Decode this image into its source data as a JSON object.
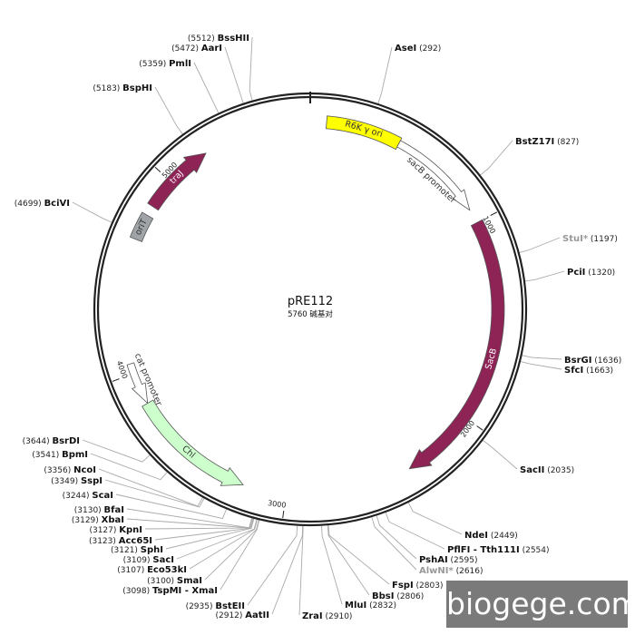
{
  "plasmid": {
    "name": "pRE112",
    "size_text": "5760 碱基对",
    "length_bp": 5760
  },
  "ticks": [
    "1000",
    "2000",
    "3000",
    "4000",
    "5000"
  ],
  "features": [
    {
      "label": "R6K γ ori",
      "start": 80,
      "end": 450,
      "color": "#ffff00",
      "kind": "box",
      "text_color": "#333"
    },
    {
      "label": "sacB promoter",
      "start": 450,
      "end": 930,
      "color": "#ffffff",
      "kind": "arrow_cw",
      "text_color": "#333"
    },
    {
      "label": "SacB",
      "start": 1000,
      "end": 2370,
      "color": "#8e2356",
      "kind": "arrow_cw",
      "text_color": "#fff"
    },
    {
      "label": "cat promoter",
      "start": 3840,
      "end": 4050,
      "color": "#ffffff",
      "kind": "arrow_ccw",
      "text_color": "#333"
    },
    {
      "label": "Chl",
      "start": 3215,
      "end": 3840,
      "color": "#ccffcc",
      "kind": "arrow_ccw",
      "text_color": "#333"
    },
    {
      "label": "oriT",
      "start": 4670,
      "end": 4800,
      "color": "#a0a4a8",
      "kind": "box",
      "text_color": "#333"
    },
    {
      "label": "traJ",
      "start": 4850,
      "end": 5220,
      "color": "#8e2356",
      "kind": "arrow_cw",
      "text_color": "#fff"
    }
  ],
  "enzymes": [
    {
      "name": "BssHII",
      "pos": "5512"
    },
    {
      "name": "AarI",
      "pos": "5472"
    },
    {
      "name": "PmlI",
      "pos": "5359"
    },
    {
      "name": "BspHI",
      "pos": "5183"
    },
    {
      "name": "BciVI",
      "pos": "4699"
    },
    {
      "name": "AseI",
      "pos": "292"
    },
    {
      "name": "BstZ17I",
      "pos": "827"
    },
    {
      "name": "StuI*",
      "pos": "1197",
      "dim": true
    },
    {
      "name": "PciI",
      "pos": "1320"
    },
    {
      "name": "BsrGI",
      "pos": "1636"
    },
    {
      "name": "SfcI",
      "pos": "1663"
    },
    {
      "name": "SacII",
      "pos": "2035"
    },
    {
      "name": "NdeI",
      "pos": "2449"
    },
    {
      "name": "PflFI - Tth111I",
      "pos": "2554"
    },
    {
      "name": "PshAI",
      "pos": "2595"
    },
    {
      "name": "AlwNI*",
      "pos": "2616",
      "dim": true
    },
    {
      "name": "FspI",
      "pos": "2803"
    },
    {
      "name": "BbsI",
      "pos": "2806"
    },
    {
      "name": "MluI",
      "pos": "2832"
    },
    {
      "name": "ZraI",
      "pos": "2910"
    },
    {
      "name": "BsrDI",
      "pos": "3644"
    },
    {
      "name": "BpmI",
      "pos": "3541"
    },
    {
      "name": "NcoI",
      "pos": "3356"
    },
    {
      "name": "SspI",
      "pos": "3349"
    },
    {
      "name": "ScaI",
      "pos": "3244"
    },
    {
      "name": "BfaI",
      "pos": "3130"
    },
    {
      "name": "XbaI",
      "pos": "3129"
    },
    {
      "name": "KpnI",
      "pos": "3127"
    },
    {
      "name": "Acc65I",
      "pos": "3123"
    },
    {
      "name": "SphI",
      "pos": "3121"
    },
    {
      "name": "SacI",
      "pos": "3109"
    },
    {
      "name": "Eco53kI",
      "pos": "3107"
    },
    {
      "name": "SmaI",
      "pos": "3100"
    },
    {
      "name": "TspMI - XmaI",
      "pos": "3098"
    },
    {
      "name": "BstEII",
      "pos": "2935"
    },
    {
      "name": "AatII",
      "pos": "2912"
    }
  ],
  "watermark": "biogege.com"
}
